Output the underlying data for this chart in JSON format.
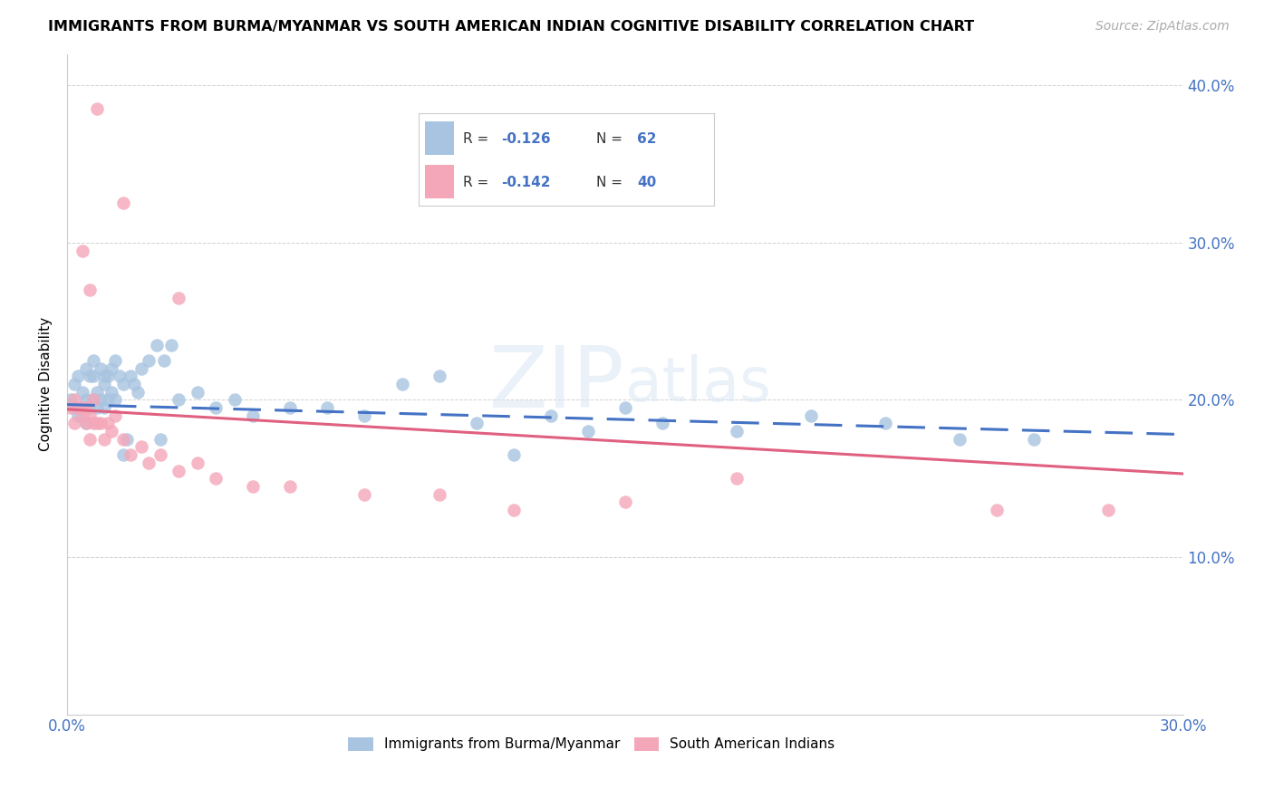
{
  "title": "IMMIGRANTS FROM BURMA/MYANMAR VS SOUTH AMERICAN INDIAN COGNITIVE DISABILITY CORRELATION CHART",
  "source": "Source: ZipAtlas.com",
  "ylabel": "Cognitive Disability",
  "xlim": [
    0.0,
    0.3
  ],
  "ylim": [
    0.0,
    0.42
  ],
  "legend_label1": "Immigrants from Burma/Myanmar",
  "legend_label2": "South American Indians",
  "R1": "-0.126",
  "N1": "62",
  "R2": "-0.142",
  "N2": "40",
  "color_blue": "#a8c4e0",
  "color_pink": "#f4a7b9",
  "line_color_blue": "#4472c4",
  "line_color_pink": "#e06080",
  "watermark_zip": "ZIP",
  "watermark_atlas": "atlas",
  "blue_x": [
    0.001,
    0.002,
    0.002,
    0.003,
    0.003,
    0.004,
    0.004,
    0.005,
    0.005,
    0.005,
    0.006,
    0.006,
    0.007,
    0.007,
    0.007,
    0.008,
    0.008,
    0.009,
    0.009,
    0.01,
    0.01,
    0.01,
    0.011,
    0.011,
    0.012,
    0.012,
    0.013,
    0.013,
    0.014,
    0.015,
    0.016,
    0.017,
    0.018,
    0.019,
    0.02,
    0.022,
    0.024,
    0.026,
    0.028,
    0.03,
    0.035,
    0.04,
    0.045,
    0.05,
    0.06,
    0.07,
    0.08,
    0.09,
    0.1,
    0.11,
    0.12,
    0.13,
    0.14,
    0.15,
    0.16,
    0.18,
    0.2,
    0.22,
    0.24,
    0.26,
    0.015,
    0.025
  ],
  "blue_y": [
    0.2,
    0.21,
    0.195,
    0.215,
    0.19,
    0.205,
    0.195,
    0.22,
    0.2,
    0.185,
    0.215,
    0.195,
    0.215,
    0.2,
    0.225,
    0.205,
    0.195,
    0.22,
    0.2,
    0.215,
    0.21,
    0.195,
    0.215,
    0.2,
    0.22,
    0.205,
    0.225,
    0.2,
    0.215,
    0.21,
    0.175,
    0.215,
    0.21,
    0.205,
    0.22,
    0.225,
    0.235,
    0.225,
    0.235,
    0.2,
    0.205,
    0.195,
    0.2,
    0.19,
    0.195,
    0.195,
    0.19,
    0.21,
    0.215,
    0.185,
    0.165,
    0.19,
    0.18,
    0.195,
    0.185,
    0.18,
    0.19,
    0.185,
    0.175,
    0.175,
    0.165,
    0.175
  ],
  "pink_x": [
    0.001,
    0.002,
    0.002,
    0.003,
    0.004,
    0.004,
    0.005,
    0.005,
    0.006,
    0.006,
    0.007,
    0.007,
    0.008,
    0.009,
    0.01,
    0.011,
    0.012,
    0.013,
    0.015,
    0.017,
    0.02,
    0.022,
    0.025,
    0.03,
    0.035,
    0.04,
    0.05,
    0.06,
    0.08,
    0.1,
    0.12,
    0.15,
    0.18,
    0.25,
    0.28,
    0.004,
    0.006,
    0.008,
    0.015,
    0.03
  ],
  "pink_y": [
    0.195,
    0.2,
    0.185,
    0.195,
    0.195,
    0.19,
    0.195,
    0.185,
    0.19,
    0.175,
    0.2,
    0.185,
    0.185,
    0.185,
    0.175,
    0.185,
    0.18,
    0.19,
    0.175,
    0.165,
    0.17,
    0.16,
    0.165,
    0.155,
    0.16,
    0.15,
    0.145,
    0.145,
    0.14,
    0.14,
    0.13,
    0.135,
    0.15,
    0.13,
    0.13,
    0.295,
    0.27,
    0.385,
    0.325,
    0.265
  ],
  "line_blue_x0": 0.0,
  "line_blue_y0": 0.197,
  "line_blue_x1": 0.3,
  "line_blue_y1": 0.178,
  "line_pink_x0": 0.0,
  "line_pink_y0": 0.194,
  "line_pink_x1": 0.3,
  "line_pink_y1": 0.153
}
